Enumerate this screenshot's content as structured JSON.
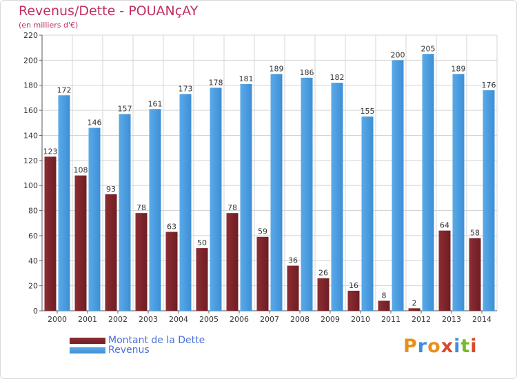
{
  "title": "Revenus/Dette - POUANçAY",
  "subtitle": "(en milliers d'€)",
  "logo_text": "Proxiti",
  "colors": {
    "dette": "#6e1d24",
    "dette_light": "#8c2e33",
    "revenus": "#3d8fd6",
    "revenus_light": "#5aaae8",
    "grid": "#d4d4d4",
    "title": "#c0305e",
    "legend_text": "#4a70d8"
  },
  "chart_data": {
    "type": "bar",
    "title": "Revenus/Dette - POUANçAY",
    "subtitle": "(en milliers d'€)",
    "categories": [
      "2000",
      "2001",
      "2002",
      "2003",
      "2004",
      "2005",
      "2006",
      "2007",
      "2008",
      "2009",
      "2010",
      "2011",
      "2012",
      "2013",
      "2014"
    ],
    "series": [
      {
        "name": "Montant de la Dette",
        "values": [
          123,
          108,
          93,
          78,
          63,
          50,
          78,
          59,
          36,
          26,
          16,
          8,
          2,
          64,
          58
        ]
      },
      {
        "name": "Revenus",
        "values": [
          172,
          146,
          157,
          161,
          173,
          178,
          181,
          189,
          186,
          182,
          155,
          200,
          205,
          189,
          176
        ]
      }
    ],
    "ylim": [
      0,
      220
    ],
    "yticks": [
      0,
      20,
      40,
      60,
      80,
      100,
      120,
      140,
      160,
      180,
      200,
      220
    ],
    "grid": true,
    "legend_position": "bottom-left"
  }
}
